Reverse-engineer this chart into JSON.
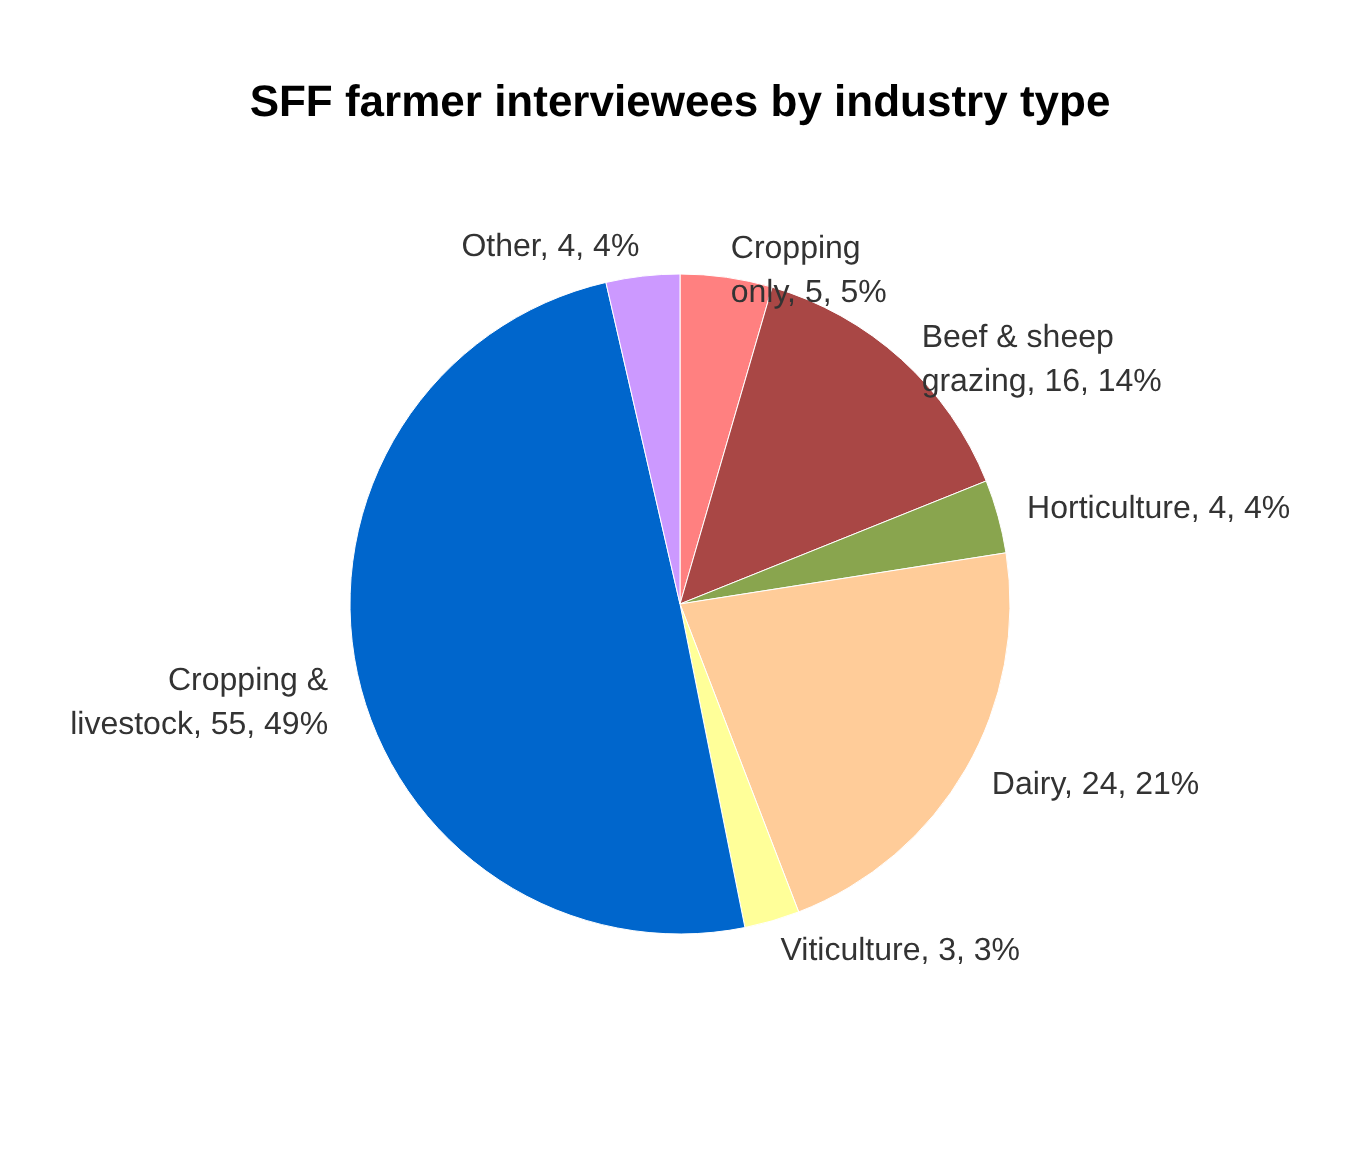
{
  "chart_data": {
    "type": "pie",
    "title": "SFF farmer interviewees by industry type",
    "categories": [
      "Cropping only",
      "Beef & sheep grazing",
      "Horticulture",
      "Dairy",
      "Viticulture",
      "Cropping & livestock",
      "Other"
    ],
    "values": [
      5,
      16,
      4,
      24,
      3,
      55,
      4
    ],
    "value_labels": [
      "5, 5%",
      "16, 14%",
      "4, 4%",
      "24, 21%",
      "3, 3%",
      "55, 49%",
      "4, 4%"
    ],
    "colors": [
      "#ff8080",
      "#a94745",
      "#89a54e",
      "#ffcc99",
      "#ffff99",
      "#0066cc",
      "#cc99ff"
    ],
    "legend": false
  }
}
